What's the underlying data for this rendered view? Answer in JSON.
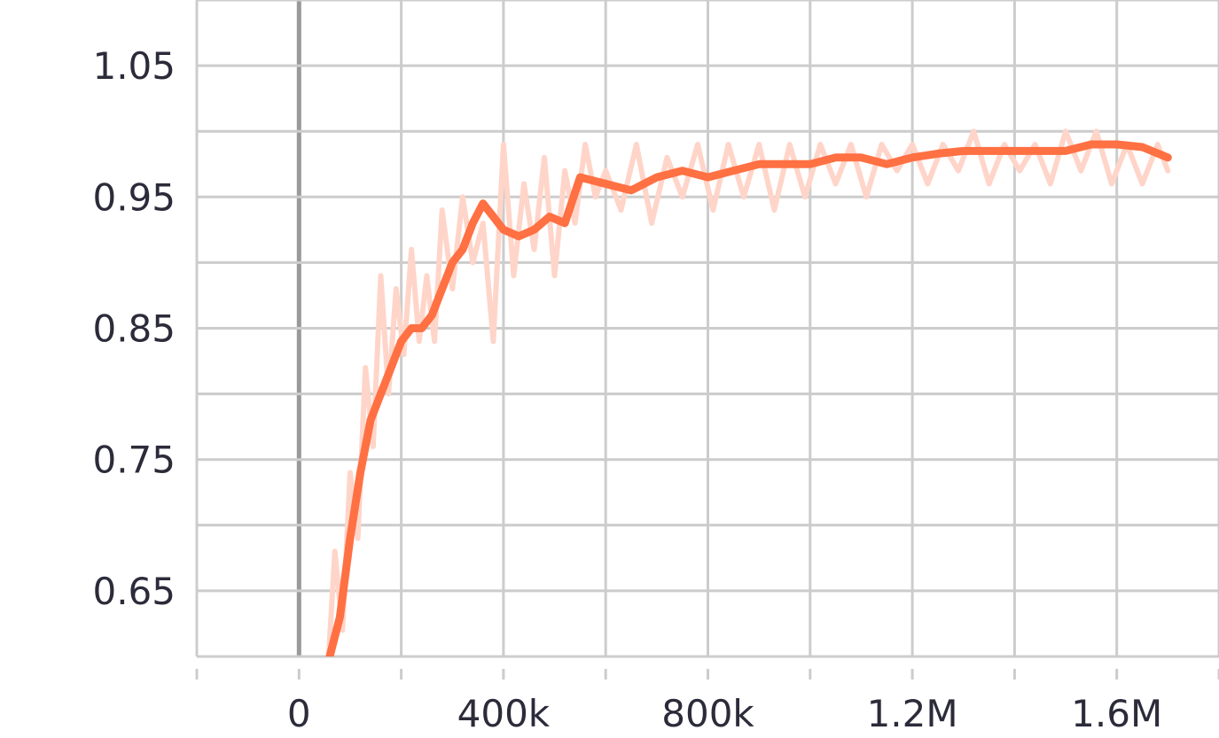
{
  "chart_data": {
    "type": "line",
    "title": "",
    "xlabel": "",
    "ylabel": "",
    "xlim": [
      -200000,
      1800000
    ],
    "ylim": [
      0.6,
      1.1
    ],
    "x_ticks": [
      0,
      400000,
      800000,
      1200000,
      1600000
    ],
    "x_tick_labels": [
      "0",
      "400k",
      "800k",
      "1.2M",
      "1.6M"
    ],
    "y_ticks": [
      0.65,
      0.75,
      0.85,
      0.95,
      1.05
    ],
    "y_tick_labels": [
      "0.65",
      "0.75",
      "0.85",
      "0.95",
      "1.05"
    ],
    "grid": true,
    "legend": "none",
    "colors": {
      "smoothed": "#ff7043",
      "raw": "#ffd5c9",
      "grid": "#cccccc",
      "zero_line": "#999999"
    },
    "series": [
      {
        "role": "smoothed",
        "x": [
          60000,
          80000,
          100000,
          120000,
          140000,
          160000,
          180000,
          200000,
          220000,
          240000,
          260000,
          280000,
          300000,
          320000,
          340000,
          360000,
          380000,
          400000,
          430000,
          460000,
          490000,
          520000,
          550000,
          600000,
          650000,
          700000,
          750000,
          800000,
          850000,
          900000,
          950000,
          1000000,
          1050000,
          1100000,
          1150000,
          1200000,
          1250000,
          1300000,
          1350000,
          1400000,
          1450000,
          1500000,
          1550000,
          1600000,
          1650000,
          1700000
        ],
        "y": [
          0.6,
          0.63,
          0.69,
          0.74,
          0.78,
          0.8,
          0.82,
          0.84,
          0.85,
          0.85,
          0.86,
          0.88,
          0.9,
          0.91,
          0.93,
          0.945,
          0.935,
          0.925,
          0.92,
          0.925,
          0.935,
          0.93,
          0.965,
          0.96,
          0.955,
          0.965,
          0.97,
          0.965,
          0.97,
          0.975,
          0.975,
          0.975,
          0.98,
          0.98,
          0.975,
          0.98,
          0.983,
          0.985,
          0.985,
          0.985,
          0.985,
          0.985,
          0.99,
          0.99,
          0.988,
          0.98
        ]
      },
      {
        "role": "raw",
        "x": [
          55000,
          70000,
          85000,
          100000,
          115000,
          130000,
          145000,
          160000,
          175000,
          190000,
          205000,
          220000,
          235000,
          250000,
          265000,
          280000,
          300000,
          320000,
          340000,
          360000,
          380000,
          400000,
          420000,
          440000,
          460000,
          480000,
          500000,
          520000,
          540000,
          560000,
          580000,
          600000,
          630000,
          660000,
          690000,
          720000,
          750000,
          780000,
          810000,
          840000,
          870000,
          900000,
          930000,
          960000,
          990000,
          1020000,
          1050000,
          1080000,
          1110000,
          1140000,
          1170000,
          1200000,
          1230000,
          1260000,
          1290000,
          1320000,
          1350000,
          1380000,
          1410000,
          1440000,
          1470000,
          1500000,
          1530000,
          1560000,
          1590000,
          1620000,
          1650000,
          1680000,
          1700000
        ],
        "y": [
          0.58,
          0.68,
          0.62,
          0.74,
          0.69,
          0.82,
          0.76,
          0.89,
          0.8,
          0.88,
          0.83,
          0.91,
          0.84,
          0.89,
          0.84,
          0.94,
          0.88,
          0.95,
          0.9,
          0.93,
          0.84,
          0.99,
          0.89,
          0.96,
          0.91,
          0.98,
          0.89,
          0.97,
          0.93,
          0.99,
          0.95,
          0.97,
          0.94,
          0.99,
          0.93,
          0.98,
          0.95,
          0.99,
          0.94,
          0.99,
          0.95,
          0.99,
          0.94,
          0.99,
          0.95,
          0.99,
          0.96,
          0.99,
          0.95,
          0.99,
          0.97,
          0.99,
          0.96,
          0.99,
          0.97,
          1.0,
          0.96,
          0.99,
          0.97,
          0.99,
          0.96,
          1.0,
          0.97,
          1.0,
          0.96,
          0.99,
          0.96,
          0.99,
          0.97
        ]
      }
    ]
  }
}
